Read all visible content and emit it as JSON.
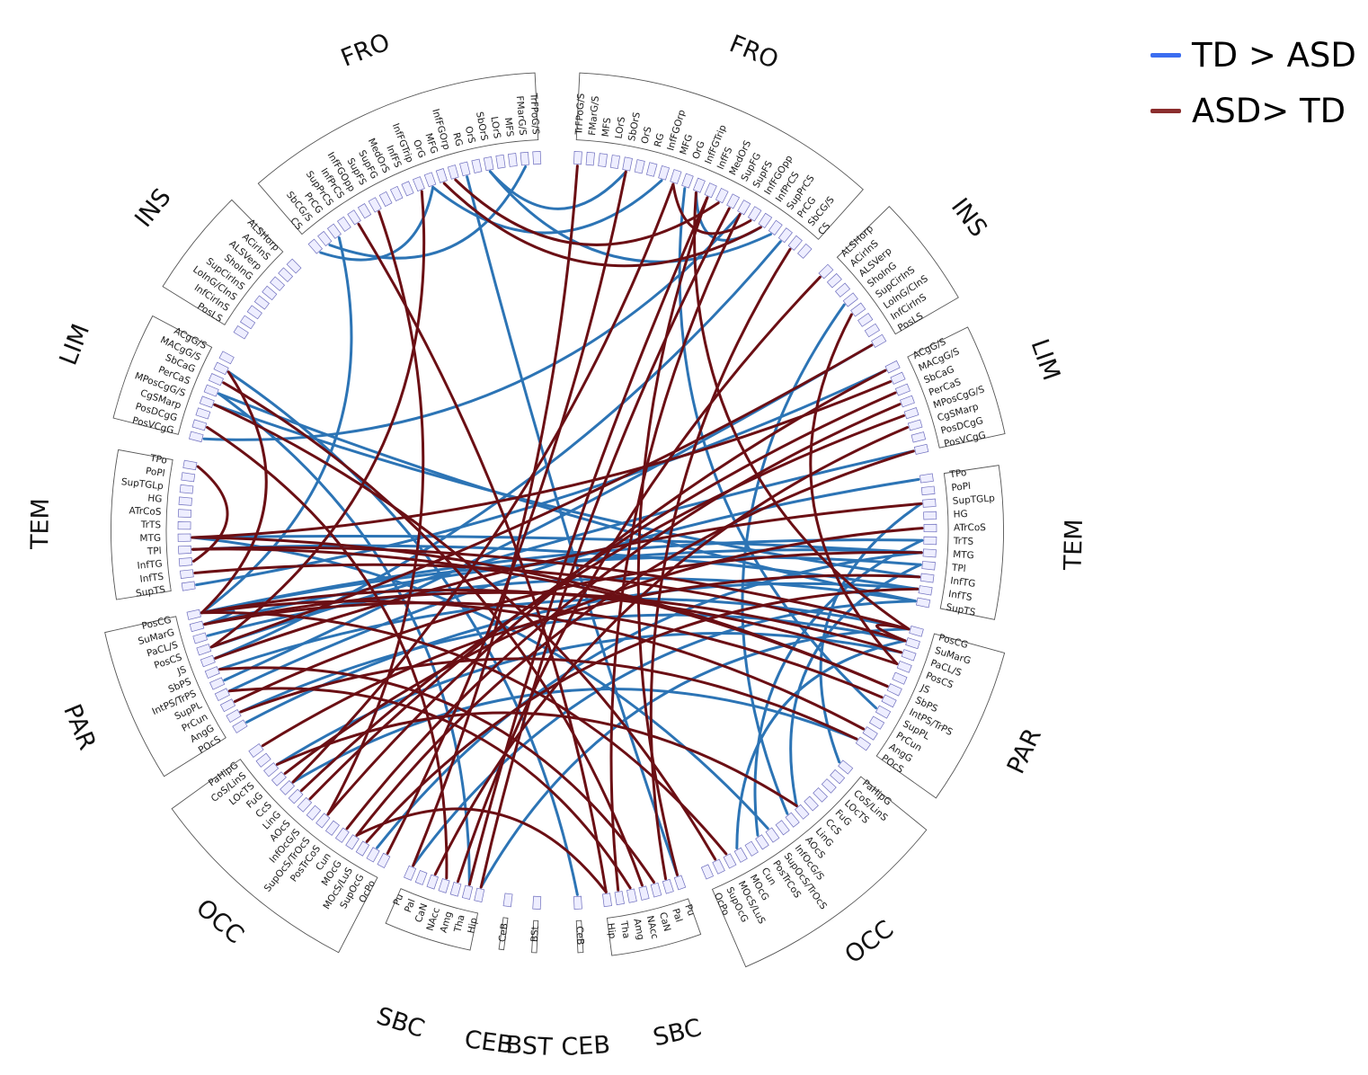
{
  "legend": [
    {
      "label": "TD > ASD",
      "color": "#3b6df0"
    },
    {
      "label": "ASD> TD",
      "color": "#8b2e2e"
    }
  ],
  "colors": {
    "td_gt_asd": "#2c74b5",
    "asd_gt_td": "#6b0f14",
    "box_fill": "#eeeeff",
    "box_stroke": "#6e6ebe"
  },
  "left_groups": [
    {
      "name": "FRO",
      "regions": [
        "TrFPoG/S",
        "FMarG/S",
        "MFS",
        "LOrS",
        "SbOrS",
        "OrS",
        "RG",
        "InfFGOrp",
        "MFG",
        "OrG",
        "InfFGTrip",
        "InfFS",
        "MedOrS",
        "SupFG",
        "SupFS",
        "InfFGOpp",
        "InfPrCS",
        "SupPrCS",
        "PrCG",
        "SbCG/S",
        "CS"
      ]
    },
    {
      "name": "INS",
      "regions": [
        "ALSHorp",
        "ACirInS",
        "ALSVerp",
        "ShoInG",
        "SupCirInS",
        "LoInG/CInS",
        "InfCirInS",
        "PosLS"
      ]
    },
    {
      "name": "LIM",
      "regions": [
        "ACgG/S",
        "MACgG/S",
        "SbCaG",
        "PerCaS",
        "MPosCgG/S",
        "CgSMarp",
        "PosDCgG",
        "PosVCgG"
      ]
    },
    {
      "name": "TEM",
      "regions": [
        "TPo",
        "PoPl",
        "SupTGLp",
        "HG",
        "ATrCoS",
        "TrTS",
        "MTG",
        "TPl",
        "InfTG",
        "InfTS",
        "SupTS"
      ]
    },
    {
      "name": "PAR",
      "regions": [
        "PosCG",
        "SuMarG",
        "PaCL/S",
        "PosCS",
        "JS",
        "SbPS",
        "IntPS/TrPS",
        "SupPL",
        "PrCun",
        "AngG",
        "POcS"
      ]
    },
    {
      "name": "OCC",
      "regions": [
        "PaHipG",
        "CoS/LinS",
        "LOcTS",
        "FuG",
        "CcS",
        "LinG",
        "AOcS",
        "InfOcG/S",
        "SupOcS/TrOcS",
        "PosTrCoS",
        "Cun",
        "MOcG",
        "MOcS/LuS",
        "SupOcG",
        "OcPo"
      ]
    },
    {
      "name": "SBC",
      "regions": [
        "Pu",
        "Pal",
        "CaN",
        "NAcc",
        "Amg",
        "Tha",
        "Hip"
      ]
    },
    {
      "name": "CEB",
      "regions": [
        "CeB"
      ]
    },
    {
      "name": "BST",
      "regions": [
        "BSt"
      ]
    }
  ],
  "right_groups": [
    {
      "name": "CEB",
      "regions": [
        "CeB"
      ]
    },
    {
      "name": "SBC",
      "regions": [
        "Hip",
        "Tha",
        "Amg",
        "NAcc",
        "CaN",
        "Pal",
        "Pu"
      ]
    },
    {
      "name": "OCC",
      "regions": [
        "OcPo",
        "SupOcG",
        "MOcS/LuS",
        "MOcG",
        "Cun",
        "PosTrCoS",
        "SupOcS/TrOcS",
        "InfOcG/S",
        "AOcS",
        "LinG",
        "CcS",
        "FuG",
        "LOcTS",
        "CoS/LinS",
        "PaHipG"
      ]
    },
    {
      "name": "PAR",
      "regions": [
        "POcS",
        "AngG",
        "PrCun",
        "SupPL",
        "IntPS/TrPS",
        "SbPS",
        "JS",
        "PosCS",
        "PaCL/S",
        "SuMarG",
        "PosCG"
      ]
    },
    {
      "name": "TEM",
      "regions": [
        "SupTS",
        "InfTS",
        "InfTG",
        "TPl",
        "MTG",
        "TrTS",
        "ATrCoS",
        "HG",
        "SupTGLp",
        "PoPl",
        "TPo"
      ]
    },
    {
      "name": "LIM",
      "regions": [
        "PosVCgG",
        "PosDCgG",
        "CgSMarp",
        "MPosCgG/S",
        "PerCaS",
        "SbCaG",
        "MACgG/S",
        "ACgG/S"
      ]
    },
    {
      "name": "INS",
      "regions": [
        "PosLS",
        "InfCirInS",
        "LoInG/CInS",
        "SupCirInS",
        "ShoInG",
        "ALSVerp",
        "ACirInS",
        "ALSHorp"
      ]
    },
    {
      "name": "FRO",
      "regions": [
        "CS",
        "SbCG/S",
        "PrCG",
        "SupPrCS",
        "InfPrCS",
        "InfFGOpp",
        "SupFS",
        "SupFG",
        "MedOrS",
        "InfFS",
        "InfFGTrip",
        "OrG",
        "MFG",
        "InfFGOrp",
        "RG",
        "OrS",
        "SbOrS",
        "LOrS",
        "MFS",
        "FMarG/S",
        "TrFPoG/S"
      ]
    }
  ],
  "connections": [
    {
      "a": "L:CS",
      "b": "L:OrG",
      "type": "TD>ASD"
    },
    {
      "a": "L:SbCG/S",
      "b": "L:FMarG/S",
      "type": "TD>ASD"
    },
    {
      "a": "L:OrG",
      "b": "R:InfFGOrp",
      "type": "TD>ASD"
    },
    {
      "a": "L:SbOrS",
      "b": "R:SbOrS",
      "type": "TD>ASD"
    },
    {
      "a": "R:SupFS",
      "b": "L:PosVCgG",
      "type": "TD>ASD"
    },
    {
      "a": "L:PerCaS",
      "b": "R:SupTS",
      "type": "TD>ASD"
    },
    {
      "a": "L:MPosCgG/S",
      "b": "R:InfTG",
      "type": "TD>ASD"
    },
    {
      "a": "L:MTG",
      "b": "R:MTG",
      "type": "TD>ASD"
    },
    {
      "a": "L:TPl",
      "b": "R:InfTS",
      "type": "TD>ASD"
    },
    {
      "a": "L:PosCG",
      "b": "R:TrTS",
      "type": "TD>ASD"
    },
    {
      "a": "L:PosCG",
      "b": "R:TPl",
      "type": "TD>ASD"
    },
    {
      "a": "L:SuMarG",
      "b": "R:MTG",
      "type": "TD>ASD"
    },
    {
      "a": "L:PaCL/S",
      "b": "R:SupTS",
      "type": "TD>ASD"
    },
    {
      "a": "L:SupTS",
      "b": "R:ACgG/S",
      "type": "TD>ASD"
    },
    {
      "a": "L:PosCS",
      "b": "R:PosVCgG",
      "type": "TD>ASD"
    },
    {
      "a": "L:SbPS",
      "b": "R:PosCG",
      "type": "TD>ASD"
    },
    {
      "a": "L:SupPL",
      "b": "R:TPo",
      "type": "TD>ASD"
    },
    {
      "a": "L:AngG",
      "b": "R:SuMarG",
      "type": "TD>ASD"
    },
    {
      "a": "L:POcS",
      "b": "R:InfTS",
      "type": "TD>ASD"
    },
    {
      "a": "L:LOcTS",
      "b": "R:PaCL/S",
      "type": "TD>ASD"
    },
    {
      "a": "L:CcS",
      "b": "R:POcS",
      "type": "TD>ASD"
    },
    {
      "a": "L:SupOcG",
      "b": "R:MTG",
      "type": "TD>ASD"
    },
    {
      "a": "L:Pu",
      "b": "R:SupTS",
      "type": "TD>ASD"
    },
    {
      "a": "L:Tha",
      "b": "L:PerCaS",
      "type": "TD>ASD"
    },
    {
      "a": "L:Hip",
      "b": "R:PosCG",
      "type": "TD>ASD"
    },
    {
      "a": "L:PrCG",
      "b": "L:PosCG",
      "type": "TD>ASD"
    },
    {
      "a": "R:CeB",
      "b": "L:MACgG/S",
      "type": "TD>ASD"
    },
    {
      "a": "R:Pu",
      "b": "L:RG",
      "type": "TD>ASD"
    },
    {
      "a": "R:PaHipG",
      "b": "R:SupTGLp",
      "type": "TD>ASD"
    },
    {
      "a": "R:LinG",
      "b": "R:TPl",
      "type": "TD>ASD"
    },
    {
      "a": "R:AOcS",
      "b": "R:ShoInG",
      "type": "TD>ASD"
    },
    {
      "a": "R:MOcG",
      "b": "R:SuMarG",
      "type": "TD>ASD"
    },
    {
      "a": "R:PosTrCoS",
      "b": "R:TrTS",
      "type": "TD>ASD"
    },
    {
      "a": "R:SupOcS/TrOcS",
      "b": "L:MTG",
      "type": "TD>ASD"
    },
    {
      "a": "R:InfFGTrip",
      "b": "R:InfPrCS",
      "type": "TD>ASD"
    },
    {
      "a": "R:SupPrCS",
      "b": "L:SbOrS",
      "type": "TD>ASD"
    },
    {
      "a": "R:OrG",
      "b": "R:SupPL",
      "type": "TD>ASD"
    },
    {
      "a": "R:PrCG",
      "b": "L:JS",
      "type": "TD>ASD"
    },
    {
      "a": "R:PosLS",
      "b": "L:IntPS/TrPS",
      "type": "TD>ASD"
    },
    {
      "a": "L:PosCG",
      "b": "L:SuMarG",
      "type": "TD>ASD"
    },
    {
      "a": "L:InfFGTrip",
      "b": "L:PosCS",
      "type": "ASD>TD"
    },
    {
      "a": "L:SupFS",
      "b": "L:SupOcS/TrOcS",
      "type": "ASD>TD"
    },
    {
      "a": "L:InfPrCS",
      "b": "R:Hip",
      "type": "ASD>TD"
    },
    {
      "a": "L:MFG",
      "b": "R:InfPrCS",
      "type": "ASD>TD"
    },
    {
      "a": "L:InfFGOrp",
      "b": "R:MedOrS",
      "type": "ASD>TD"
    },
    {
      "a": "R:InfFGOpp",
      "b": "R:MFG",
      "type": "ASD>TD"
    },
    {
      "a": "R:SupFG",
      "b": "L:Hip",
      "type": "ASD>TD"
    },
    {
      "a": "R:InfFS",
      "b": "L:Tha",
      "type": "ASD>TD"
    },
    {
      "a": "R:MFG",
      "b": "L:CcS",
      "type": "ASD>TD"
    },
    {
      "a": "R:InfFGTrip",
      "b": "R:PosCG",
      "type": "ASD>TD"
    },
    {
      "a": "R:SbCG/S",
      "b": "R:Pal",
      "type": "ASD>TD"
    },
    {
      "a": "R:PosVCgG",
      "b": "L:MOcG",
      "type": "ASD>TD"
    },
    {
      "a": "R:ACgG/S",
      "b": "L:SupOcS/TrOcS",
      "type": "ASD>TD"
    },
    {
      "a": "R:MACgG/S",
      "b": "L:MTG",
      "type": "ASD>TD"
    },
    {
      "a": "R:PosLS",
      "b": "L:PosCS",
      "type": "ASD>TD"
    },
    {
      "a": "L:TPo",
      "b": "L:InfTG",
      "type": "ASD>TD"
    },
    {
      "a": "L:MTG",
      "b": "R:SbPS",
      "type": "ASD>TD"
    },
    {
      "a": "L:TPl",
      "b": "R:PosCG",
      "type": "ASD>TD"
    },
    {
      "a": "L:InfTS",
      "b": "R:SuMarG",
      "type": "ASD>TD"
    },
    {
      "a": "L:MACgG/S",
      "b": "L:PosCG",
      "type": "ASD>TD"
    },
    {
      "a": "L:SbCaG",
      "b": "R:NAcc",
      "type": "ASD>TD"
    },
    {
      "a": "L:PosCG",
      "b": "R:PosCS",
      "type": "ASD>TD"
    },
    {
      "a": "L:SuMarG",
      "b": "R:IntPS/TrPS",
      "type": "ASD>TD"
    },
    {
      "a": "L:JS",
      "b": "R:SupTGLp",
      "type": "ASD>TD"
    },
    {
      "a": "L:PrCun",
      "b": "R:MTG",
      "type": "ASD>TD"
    },
    {
      "a": "L:AngG",
      "b": "R:POcS",
      "type": "ASD>TD"
    },
    {
      "a": "L:PaHipG",
      "b": "R:InfTG",
      "type": "ASD>TD"
    },
    {
      "a": "L:FuG",
      "b": "R:ATrCoS",
      "type": "ASD>TD"
    },
    {
      "a": "L:LinG",
      "b": "R:MPosCgG/S",
      "type": "ASD>TD"
    },
    {
      "a": "L:AOcS",
      "b": "R:SbCaG",
      "type": "ASD>TD"
    },
    {
      "a": "L:Cun",
      "b": "R:PerCaS",
      "type": "ASD>TD"
    },
    {
      "a": "L:MOcS/LuS",
      "b": "R:InfTS",
      "type": "ASD>TD"
    },
    {
      "a": "L:OcPo",
      "b": "R:SbOrS",
      "type": "ASD>TD"
    },
    {
      "a": "L:Pu",
      "b": "R:TrFPoG/S",
      "type": "ASD>TD"
    },
    {
      "a": "L:CaN",
      "b": "R:CgSMarp",
      "type": "ASD>TD"
    },
    {
      "a": "L:Amg",
      "b": "R:ALSHorp",
      "type": "ASD>TD"
    },
    {
      "a": "L:NAcc",
      "b": "L:PosDCgG",
      "type": "ASD>TD"
    },
    {
      "a": "R:Tha",
      "b": "R:SupFS",
      "type": "ASD>TD"
    },
    {
      "a": "R:Amg",
      "b": "L:SupPL",
      "type": "ASD>TD"
    },
    {
      "a": "R:CaN",
      "b": "L:SbPS",
      "type": "ASD>TD"
    },
    {
      "a": "R:Hip",
      "b": "L:MOcG",
      "type": "ASD>TD"
    },
    {
      "a": "R:Pu",
      "b": "R:InfFS",
      "type": "ASD>TD"
    },
    {
      "a": "R:SupOcG",
      "b": "L:MPosCgG/S",
      "type": "ASD>TD"
    },
    {
      "a": "R:MOcS/LuS",
      "b": "L:PosCG",
      "type": "ASD>TD"
    },
    {
      "a": "R:LinG",
      "b": "L:LOcTS",
      "type": "ASD>TD"
    },
    {
      "a": "R:PosCG",
      "b": "R:SuMarG",
      "type": "ASD>TD"
    },
    {
      "a": "R:PaCL/S",
      "b": "L:SuMarG",
      "type": "ASD>TD"
    },
    {
      "a": "R:PosCS",
      "b": "R:SupCirInS",
      "type": "ASD>TD"
    },
    {
      "a": "R:SbPS",
      "b": "L:TPl",
      "type": "ASD>TD"
    },
    {
      "a": "R:AngG",
      "b": "L:PosCG",
      "type": "ASD>TD"
    }
  ]
}
